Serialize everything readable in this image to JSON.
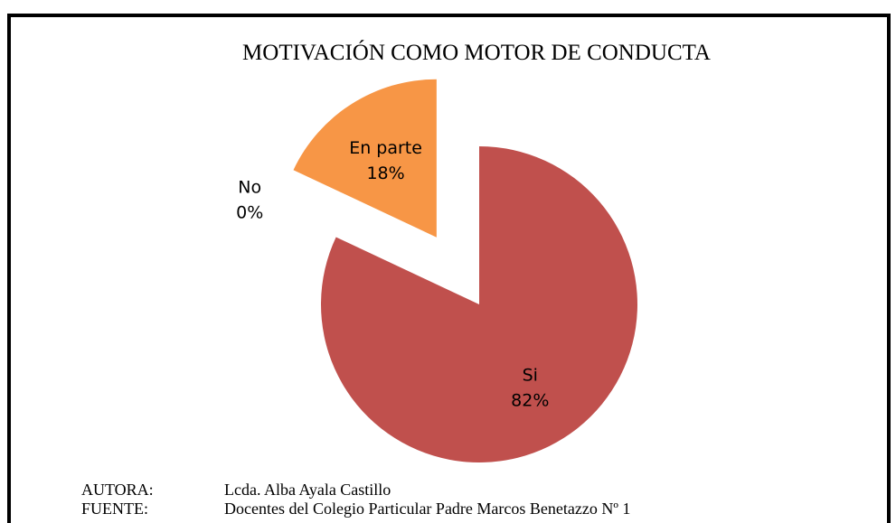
{
  "chart_data": {
    "type": "pie",
    "title": "MOTIVACIÓN COMO MOTOR DE CONDUCTA",
    "categories": [
      "Si",
      "No",
      "En parte"
    ],
    "values": [
      82,
      0,
      18
    ],
    "value_labels": [
      "82%",
      "0%",
      "18%"
    ],
    "colors": [
      "#c0504d",
      "#4f81bd",
      "#f79646"
    ]
  },
  "footer": {
    "rows": [
      [
        "AUTORA:",
        "Lcda. Alba Ayala Castillo"
      ],
      [
        "FUENTE:",
        "Docentes del Colegio Particular Padre Marcos Benetazzo Nº 1"
      ]
    ]
  }
}
